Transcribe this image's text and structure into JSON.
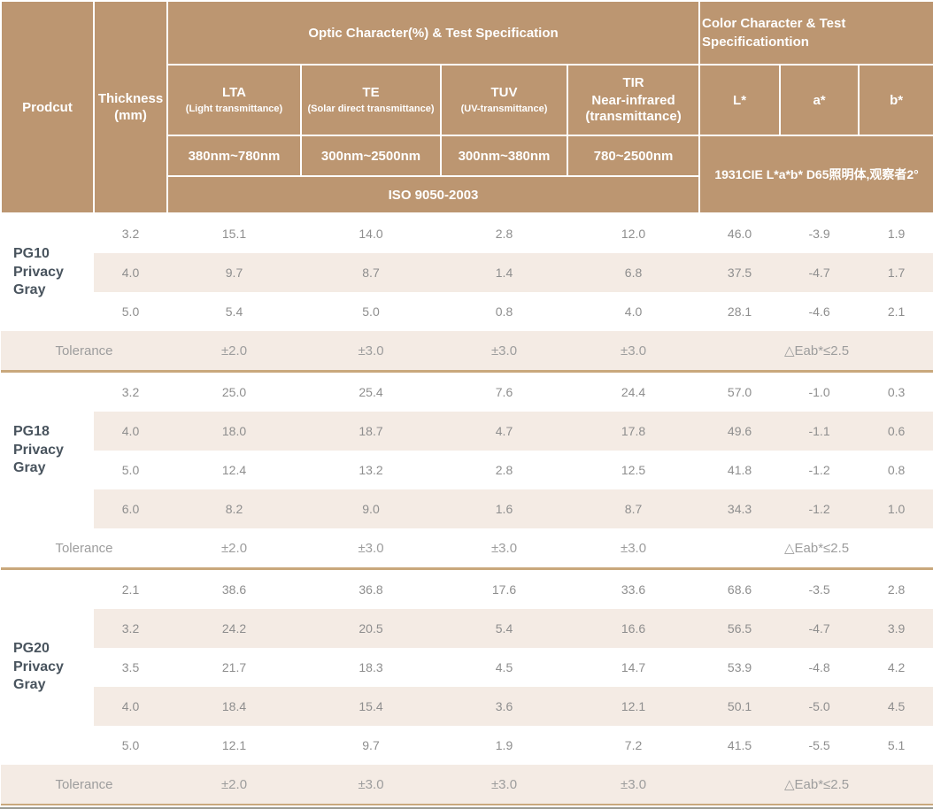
{
  "table": {
    "header": {
      "product": "Prodcut",
      "thickness": "Thickness (mm)",
      "optic_group": "Optic Character(%) & Test Specification",
      "color_group": "Color Character & Test Specificationtion",
      "optic_columns": [
        {
          "name": "LTA",
          "sub": "(Light transmittance)",
          "range": "380nm~780nm"
        },
        {
          "name": "TE",
          "sub": "(Solar direct transmittance)",
          "range": "300nm~2500nm"
        },
        {
          "name": "TUV",
          "sub": "(UV-transmittance)",
          "range": "300nm~380nm"
        },
        {
          "name": "TIR\nNear-infrared",
          "sub": "(transmittance)",
          "range": "780~2500nm"
        }
      ],
      "color_columns": [
        "L*",
        "a*",
        "b*"
      ],
      "optic_standard": "ISO 9050-2003",
      "color_standard": "1931CIE L*a*b*  D65照明体,观察者2°"
    },
    "sections": [
      {
        "product": "PG10",
        "subtitle": "Privacy Gray",
        "rows": [
          {
            "thickness": "3.2",
            "values": [
              "15.1",
              "14.0",
              "2.8",
              "12.0",
              "46.0",
              "-3.9",
              "1.9"
            ]
          },
          {
            "thickness": "4.0",
            "values": [
              "9.7",
              "8.7",
              "1.4",
              "6.8",
              "37.5",
              "-4.7",
              "1.7"
            ]
          },
          {
            "thickness": "5.0",
            "values": [
              "5.4",
              "5.0",
              "0.8",
              "4.0",
              "28.1",
              "-4.6",
              "2.1"
            ]
          }
        ],
        "tolerance": {
          "label": "Tolerance",
          "values": [
            "±2.0",
            "±3.0",
            "±3.0",
            "±3.0"
          ],
          "color": "△Eab*≤2.5"
        }
      },
      {
        "product": "PG18",
        "subtitle": "Privacy Gray",
        "rows": [
          {
            "thickness": "3.2",
            "values": [
              "25.0",
              "25.4",
              "7.6",
              "24.4",
              "57.0",
              "-1.0",
              "0.3"
            ]
          },
          {
            "thickness": "4.0",
            "values": [
              "18.0",
              "18.7",
              "4.7",
              "17.8",
              "49.6",
              "-1.1",
              "0.6"
            ]
          },
          {
            "thickness": "5.0",
            "values": [
              "12.4",
              "13.2",
              "2.8",
              "12.5",
              "41.8",
              "-1.2",
              "0.8"
            ]
          },
          {
            "thickness": "6.0",
            "values": [
              "8.2",
              "9.0",
              "1.6",
              "8.7",
              "34.3",
              "-1.2",
              "1.0"
            ]
          }
        ],
        "tolerance": {
          "label": "Tolerance",
          "values": [
            "±2.0",
            "±3.0",
            "±3.0",
            "±3.0"
          ],
          "color": "△Eab*≤2.5"
        }
      },
      {
        "product": "PG20",
        "subtitle": "Privacy Gray",
        "rows": [
          {
            "thickness": "2.1",
            "values": [
              "38.6",
              "36.8",
              "17.6",
              "33.6",
              "68.6",
              "-3.5",
              "2.8"
            ]
          },
          {
            "thickness": "3.2",
            "values": [
              "24.2",
              "20.5",
              "5.4",
              "16.6",
              "56.5",
              "-4.7",
              "3.9"
            ]
          },
          {
            "thickness": "3.5",
            "values": [
              "21.7",
              "18.3",
              "4.5",
              "14.7",
              "53.9",
              "-4.8",
              "4.2"
            ]
          },
          {
            "thickness": "4.0",
            "values": [
              "18.4",
              "15.4",
              "3.6",
              "12.1",
              "50.1",
              "-5.0",
              "4.5"
            ]
          },
          {
            "thickness": "5.0",
            "values": [
              "12.1",
              "9.7",
              "1.9",
              "7.2",
              "41.5",
              "-5.5",
              "5.1"
            ]
          }
        ],
        "tolerance": {
          "label": "Tolerance",
          "values": [
            "±2.0",
            "±3.0",
            "±3.0",
            "±3.0"
          ],
          "color": "△Eab*≤2.5"
        }
      }
    ]
  }
}
